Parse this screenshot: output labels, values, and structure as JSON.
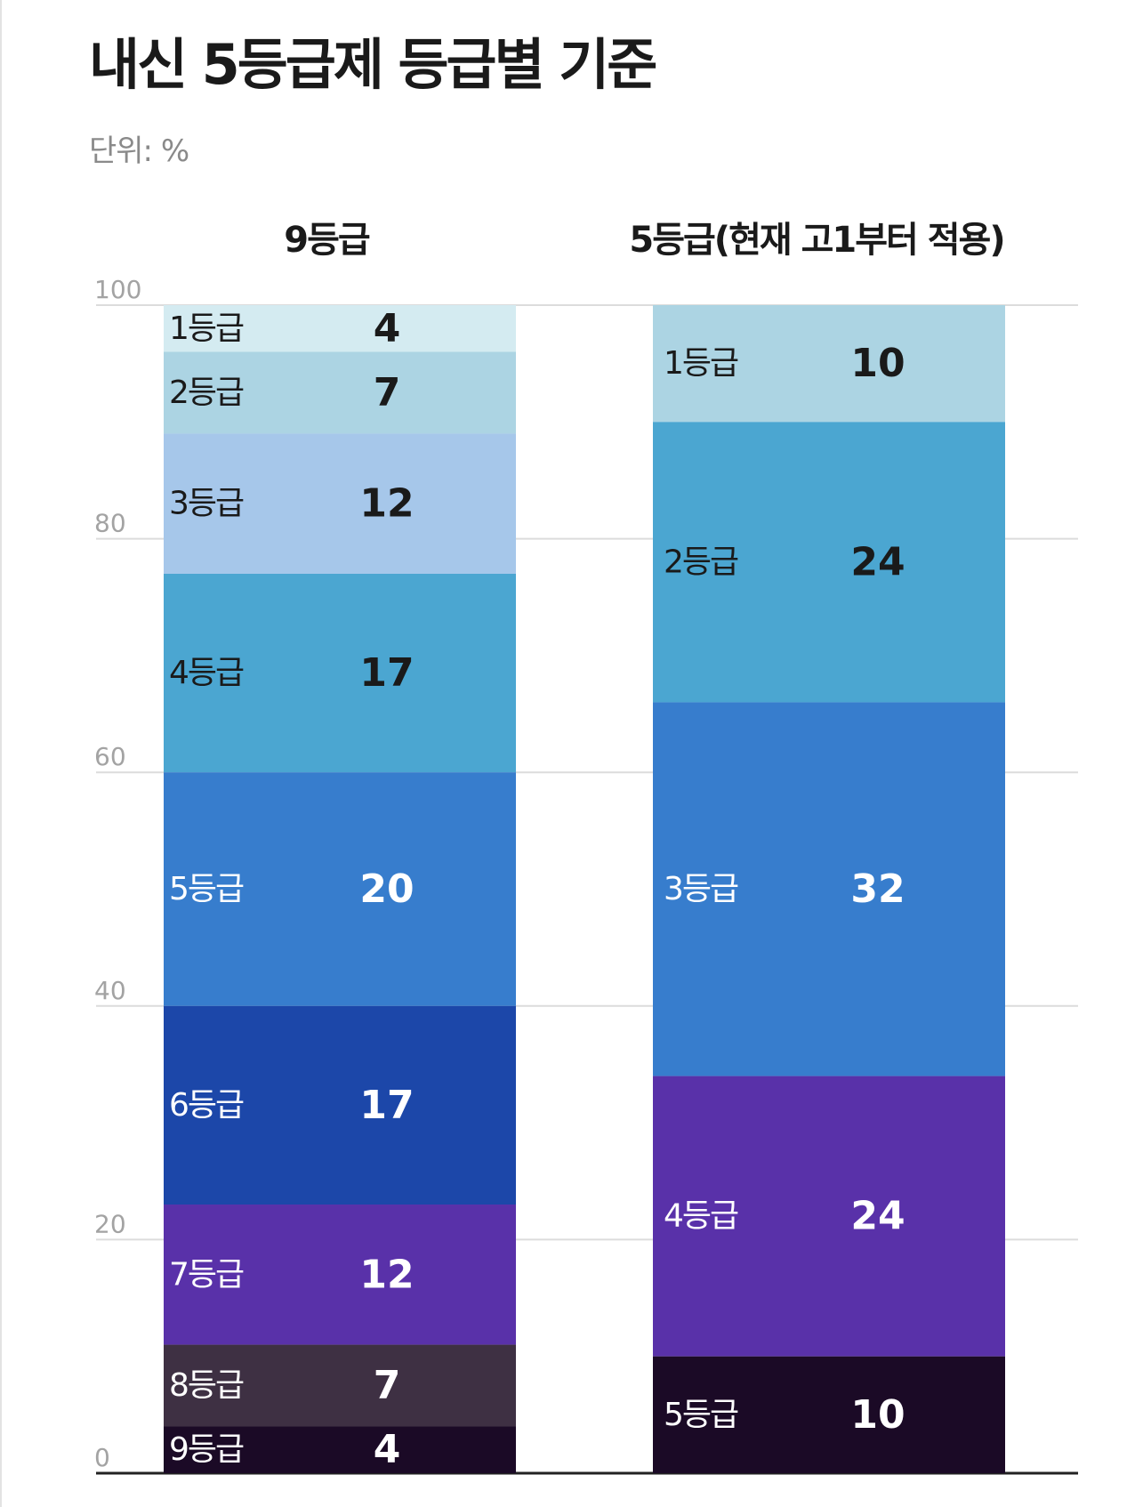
{
  "title": "내신 5등급제 등급별 기준",
  "unit_label": "단위: %",
  "chart_data": {
    "type": "bar",
    "stacked": true,
    "y_ticks": [
      0,
      20,
      40,
      60,
      80,
      100
    ],
    "ylim": [
      0,
      100
    ],
    "grid": true,
    "columns": [
      {
        "title": "9등급",
        "segments": [
          {
            "grade": "1등급",
            "value": 4,
            "value_label": "4",
            "color": "#d4ebf1",
            "text_color": "#1a1a1a"
          },
          {
            "grade": "2등급",
            "value": 7,
            "value_label": "7",
            "color": "#acd4e3",
            "text_color": "#1a1a1a"
          },
          {
            "grade": "3등급",
            "value": 12,
            "value_label": "12",
            "color": "#a6c7ea",
            "text_color": "#1a1a1a"
          },
          {
            "grade": "4등급",
            "value": 17,
            "value_label": "17",
            "color": "#4ba6d1",
            "text_color": "#1a1a1a"
          },
          {
            "grade": "5등급",
            "value": 20,
            "value_label": "20",
            "color": "#377dcd",
            "text_color": "#ffffff"
          },
          {
            "grade": "6등급",
            "value": 17,
            "value_label": "17",
            "color": "#1c47a9",
            "text_color": "#ffffff"
          },
          {
            "grade": "7등급",
            "value": 12,
            "value_label": "12",
            "color": "#5931a9",
            "text_color": "#ffffff"
          },
          {
            "grade": "8등급",
            "value": 7,
            "value_label": "7",
            "color": "#3e3043",
            "text_color": "#ffffff"
          },
          {
            "grade": "9등급",
            "value": 4,
            "value_label": "4",
            "color": "#1b0a26",
            "text_color": "#ffffff"
          }
        ]
      },
      {
        "title": "5등급(현재 고1부터 적용)",
        "segments": [
          {
            "grade": "1등급",
            "value": 10,
            "value_label": "10",
            "color": "#acd4e3",
            "text_color": "#1a1a1a"
          },
          {
            "grade": "2등급",
            "value": 24,
            "value_label": "24",
            "color": "#4ba6d1",
            "text_color": "#1a1a1a"
          },
          {
            "grade": "3등급",
            "value": 32,
            "value_label": "32",
            "color": "#377dcd",
            "text_color": "#ffffff"
          },
          {
            "grade": "4등급",
            "value": 24,
            "value_label": "24",
            "color": "#5931a9",
            "text_color": "#ffffff"
          },
          {
            "grade": "5등급",
            "value": 10,
            "value_label": "10",
            "color": "#1b0a26",
            "text_color": "#ffffff"
          }
        ]
      }
    ]
  }
}
